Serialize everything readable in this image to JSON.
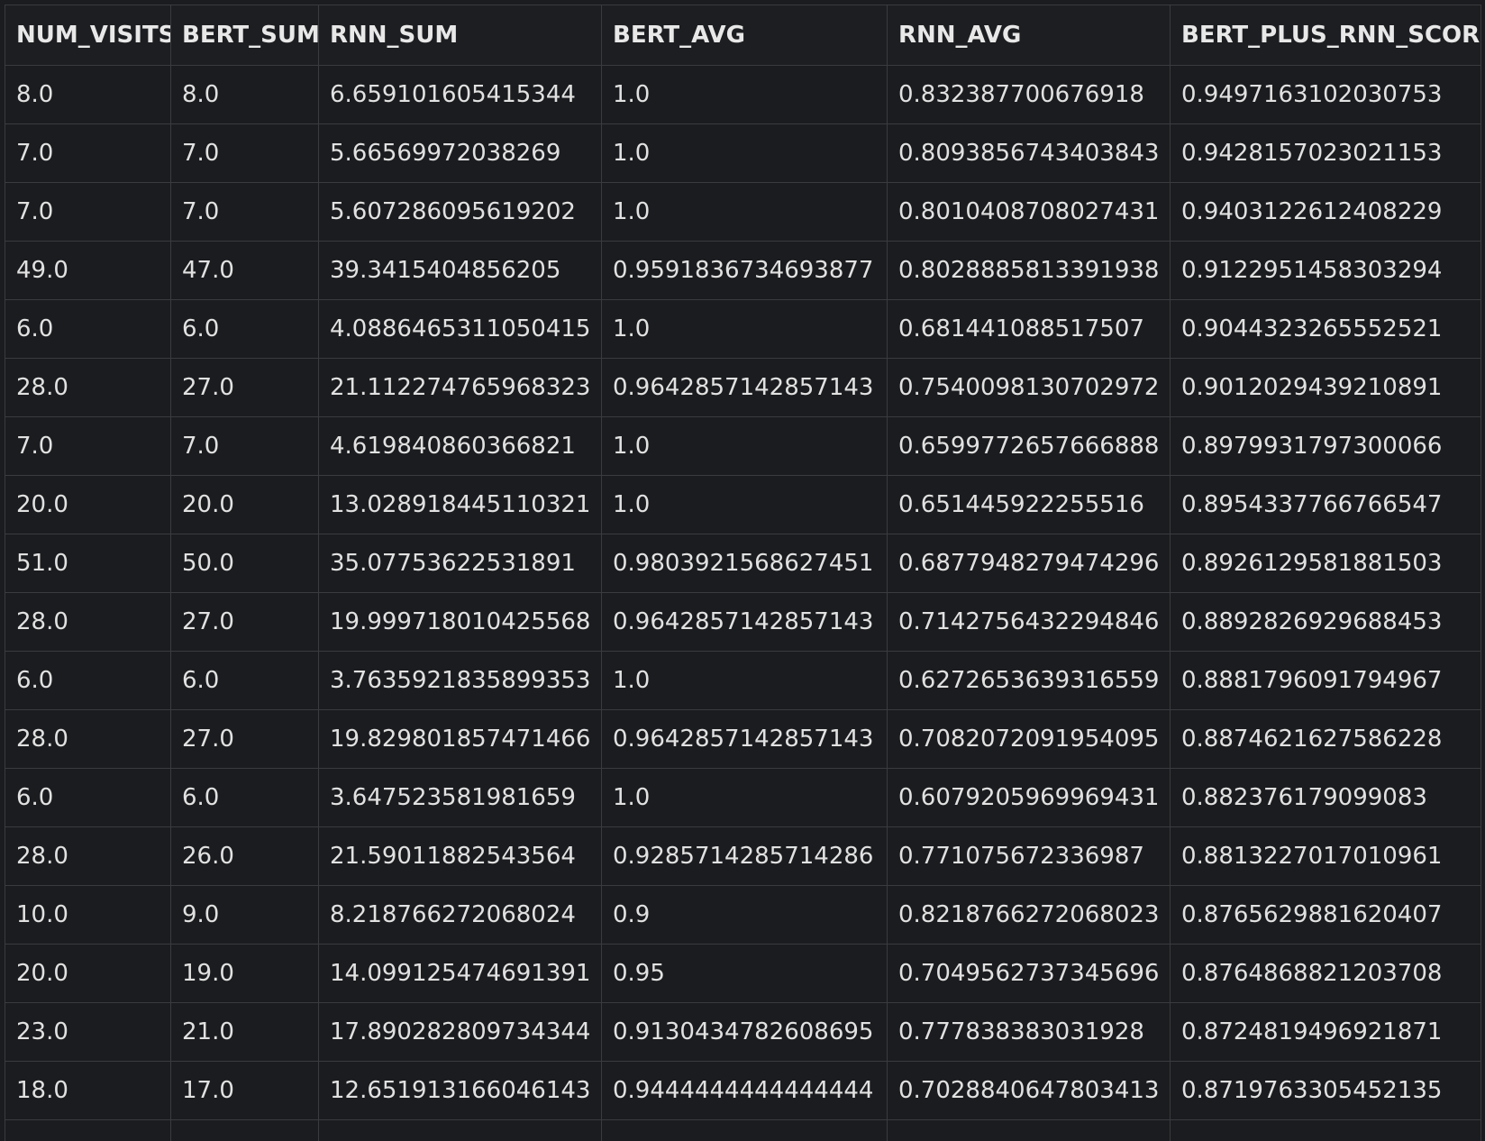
{
  "table": {
    "columns": [
      "NUM_VISITS",
      "BERT_SUM",
      "RNN_SUM",
      "BERT_AVG",
      "RNN_AVG",
      "BERT_PLUS_RNN_SCORE"
    ],
    "rows": [
      [
        "8.0",
        "8.0",
        "6.659101605415344",
        "1.0",
        "0.832387700676918",
        "0.9497163102030753"
      ],
      [
        "7.0",
        "7.0",
        "5.66569972038269",
        "1.0",
        "0.8093856743403843",
        "0.9428157023021153"
      ],
      [
        "7.0",
        "7.0",
        "5.607286095619202",
        "1.0",
        "0.8010408708027431",
        "0.9403122612408229"
      ],
      [
        "49.0",
        "47.0",
        "39.3415404856205",
        "0.9591836734693877",
        "0.8028885813391938",
        "0.9122951458303294"
      ],
      [
        "6.0",
        "6.0",
        "4.0886465311050415",
        "1.0",
        "0.681441088517507",
        "0.9044323265552521"
      ],
      [
        "28.0",
        "27.0",
        "21.112274765968323",
        "0.9642857142857143",
        "0.7540098130702972",
        "0.9012029439210891"
      ],
      [
        "7.0",
        "7.0",
        "4.619840860366821",
        "1.0",
        "0.6599772657666888",
        "0.8979931797300066"
      ],
      [
        "20.0",
        "20.0",
        "13.028918445110321",
        "1.0",
        "0.651445922255516",
        "0.8954337766766547"
      ],
      [
        "51.0",
        "50.0",
        "35.07753622531891",
        "0.9803921568627451",
        "0.6877948279474296",
        "0.8926129581881503"
      ],
      [
        "28.0",
        "27.0",
        "19.999718010425568",
        "0.9642857142857143",
        "0.7142756432294846",
        "0.8892826929688453"
      ],
      [
        "6.0",
        "6.0",
        "3.7635921835899353",
        "1.0",
        "0.6272653639316559",
        "0.8881796091794967"
      ],
      [
        "28.0",
        "27.0",
        "19.829801857471466",
        "0.9642857142857143",
        "0.7082072091954095",
        "0.8874621627586228"
      ],
      [
        "6.0",
        "6.0",
        "3.647523581981659",
        "1.0",
        "0.6079205969969431",
        "0.882376179099083"
      ],
      [
        "28.0",
        "26.0",
        "21.59011882543564",
        "0.9285714285714286",
        "0.771075672336987",
        "0.8813227017010961"
      ],
      [
        "10.0",
        "9.0",
        "8.218766272068024",
        "0.9",
        "0.8218766272068023",
        "0.8765629881620407"
      ],
      [
        "20.0",
        "19.0",
        "14.099125474691391",
        "0.95",
        "0.7049562737345696",
        "0.8764868821203708"
      ],
      [
        "23.0",
        "21.0",
        "17.890282809734344",
        "0.9130434782608695",
        "0.777838383031928",
        "0.8724819496921871"
      ],
      [
        "18.0",
        "17.0",
        "12.651913166046143",
        "0.9444444444444444",
        "0.7028840647803413",
        "0.8719763305452135"
      ],
      [
        "",
        "",
        "",
        "",
        "",
        ""
      ]
    ]
  }
}
